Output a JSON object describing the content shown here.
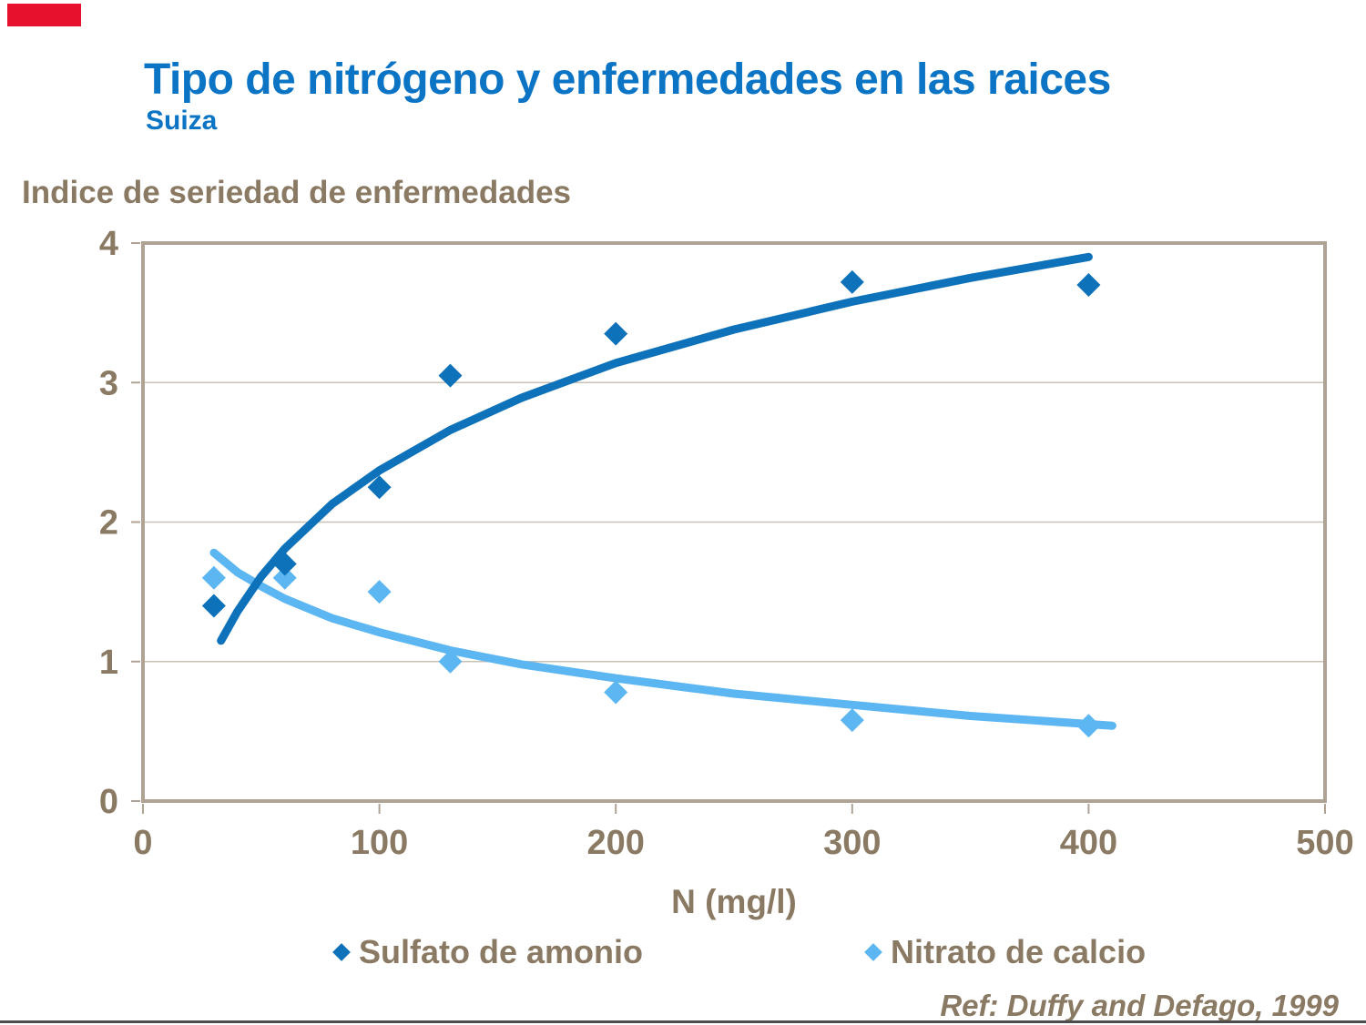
{
  "page": {
    "title": "Tipo de nitrógeno y enfermedades en las raices",
    "subtitle": "Suiza",
    "reference": "Ref: Duffy and Defago, 1999"
  },
  "colors": {
    "title_blue": "#0b74c4",
    "tan_text": "#8a7963",
    "axis_frame": "#afa396",
    "gridline": "#c8c1b5",
    "red_bar": "#e8112d",
    "bottom_rule": "#4d4d4d",
    "series_dark_blue": "#0e72ba",
    "series_light_blue": "#5cb6f2"
  },
  "chart_data": {
    "type": "scatter",
    "title": "Tipo de nitrógeno y enfermedades en las raices — Suiza",
    "ylabel": "Indice de seriedad de enfermedades",
    "xlabel": "N (mg/l)",
    "xlim": [
      0,
      500
    ],
    "ylim": [
      0,
      4
    ],
    "x_ticks": [
      0,
      100,
      200,
      300,
      400,
      500
    ],
    "y_ticks": [
      0,
      1,
      2,
      3,
      4
    ],
    "grid": "horizontal gridlines at y=1,2,3; full plot border",
    "legend_position": "bottom",
    "series": [
      {
        "name": "Sulfato de amonio",
        "color": "#0e72ba",
        "marker": "diamond",
        "points": [
          [
            30,
            1.4
          ],
          [
            60,
            1.7
          ],
          [
            100,
            2.25
          ],
          [
            130,
            3.05
          ],
          [
            200,
            3.35
          ],
          [
            300,
            3.72
          ],
          [
            400,
            3.7
          ]
        ],
        "trend_type": "logarithmic",
        "trend": [
          [
            33,
            1.15
          ],
          [
            40,
            1.36
          ],
          [
            50,
            1.61
          ],
          [
            60,
            1.81
          ],
          [
            80,
            2.13
          ],
          [
            100,
            2.37
          ],
          [
            130,
            2.66
          ],
          [
            160,
            2.89
          ],
          [
            200,
            3.14
          ],
          [
            250,
            3.38
          ],
          [
            300,
            3.58
          ],
          [
            350,
            3.75
          ],
          [
            400,
            3.9
          ]
        ]
      },
      {
        "name": "Nitrato de calcio",
        "color": "#5cb6f2",
        "marker": "diamond",
        "points": [
          [
            30,
            1.6
          ],
          [
            60,
            1.6
          ],
          [
            100,
            1.5
          ],
          [
            130,
            1.0
          ],
          [
            200,
            0.78
          ],
          [
            300,
            0.58
          ],
          [
            400,
            0.54
          ]
        ],
        "trend_type": "logarithmic",
        "trend": [
          [
            30,
            1.78
          ],
          [
            40,
            1.64
          ],
          [
            50,
            1.54
          ],
          [
            60,
            1.45
          ],
          [
            80,
            1.31
          ],
          [
            100,
            1.21
          ],
          [
            130,
            1.08
          ],
          [
            160,
            0.98
          ],
          [
            200,
            0.88
          ],
          [
            250,
            0.77
          ],
          [
            300,
            0.69
          ],
          [
            350,
            0.61
          ],
          [
            410,
            0.54
          ]
        ]
      }
    ]
  }
}
